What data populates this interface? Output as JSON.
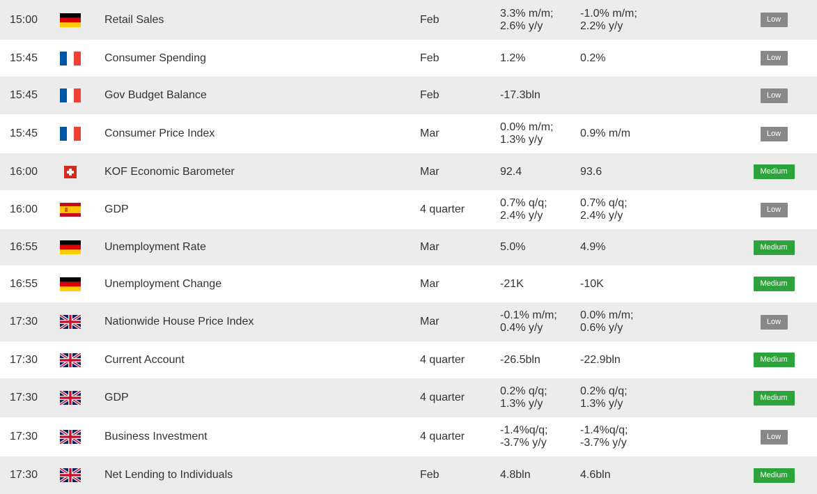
{
  "colors": {
    "row_alt": "#ececec",
    "row_white": "#ffffff",
    "badge_low": "#888888",
    "badge_medium": "#2ea23b"
  },
  "rows": [
    {
      "time": "15:00",
      "flag": "germany-flag-icon",
      "event": "Retail Sales",
      "period": "Feb",
      "actual": [
        "3.3% m/m;",
        "2.6% y/y"
      ],
      "previous": [
        "-1.0% m/m;",
        "2.2% y/y"
      ],
      "importance": "Low"
    },
    {
      "time": "15:45",
      "flag": "france-flag-icon",
      "event": "Consumer Spending",
      "period": "Feb",
      "actual": [
        "1.2%"
      ],
      "previous": [
        "0.2%"
      ],
      "importance": "Low"
    },
    {
      "time": "15:45",
      "flag": "france-flag-icon",
      "event": "Gov Budget Balance",
      "period": "Feb",
      "actual": [
        "-17.3bln"
      ],
      "previous": [],
      "importance": "Low"
    },
    {
      "time": "15:45",
      "flag": "france-flag-icon",
      "event": "Consumer Price Index",
      "period": "Mar",
      "actual": [
        "0.0% m/m;",
        "1.3% y/y"
      ],
      "previous": [
        "0.9% m/m"
      ],
      "importance": "Low"
    },
    {
      "time": "16:00",
      "flag": "switzerland-flag-icon",
      "event": "KOF Economic Barometer",
      "period": "Mar",
      "actual": [
        "92.4"
      ],
      "previous": [
        "93.6"
      ],
      "importance": "Medium"
    },
    {
      "time": "16:00",
      "flag": "spain-flag-icon",
      "event": "GDP",
      "period": "4 quarter",
      "actual": [
        "0.7% q/q;",
        "2.4% y/y"
      ],
      "previous": [
        "0.7% q/q;",
        "2.4% y/y"
      ],
      "importance": "Low"
    },
    {
      "time": "16:55",
      "flag": "germany-flag-icon",
      "event": "Unemployment Rate",
      "period": "Mar",
      "actual": [
        "5.0%"
      ],
      "previous": [
        "4.9%"
      ],
      "importance": "Medium"
    },
    {
      "time": "16:55",
      "flag": "germany-flag-icon",
      "event": "Unemployment Change",
      "period": "Mar",
      "actual": [
        "-21K"
      ],
      "previous": [
        "-10K"
      ],
      "importance": "Medium"
    },
    {
      "time": "17:30",
      "flag": "uk-flag-icon",
      "event": "Nationwide House Price Index",
      "period": "Mar",
      "actual": [
        "-0.1% m/m;",
        "0.4% y/y"
      ],
      "previous": [
        "0.0% m/m;",
        "0.6% y/y"
      ],
      "importance": "Low"
    },
    {
      "time": "17:30",
      "flag": "uk-flag-icon",
      "event": "Current Account",
      "period": "4 quarter",
      "actual": [
        "-26.5bln"
      ],
      "previous": [
        "-22.9bln"
      ],
      "importance": "Medium"
    },
    {
      "time": "17:30",
      "flag": "uk-flag-icon",
      "event": "GDP",
      "period": "4 quarter",
      "actual": [
        "0.2% q/q;",
        "1.3% y/y"
      ],
      "previous": [
        "0.2% q/q;",
        "1.3% y/y"
      ],
      "importance": "Medium"
    },
    {
      "time": "17:30",
      "flag": "uk-flag-icon",
      "event": "Business Investment",
      "period": "4 quarter",
      "actual": [
        "-1.4%q/q;",
        "-3.7% y/y"
      ],
      "previous": [
        "-1.4%q/q;",
        "-3.7% y/y"
      ],
      "importance": "Low"
    },
    {
      "time": "17:30",
      "flag": "uk-flag-icon",
      "event": "Net Lending to Individuals",
      "period": "Feb",
      "actual": [
        "4.8bln"
      ],
      "previous": [
        "4.6bln"
      ],
      "importance": "Medium"
    }
  ]
}
